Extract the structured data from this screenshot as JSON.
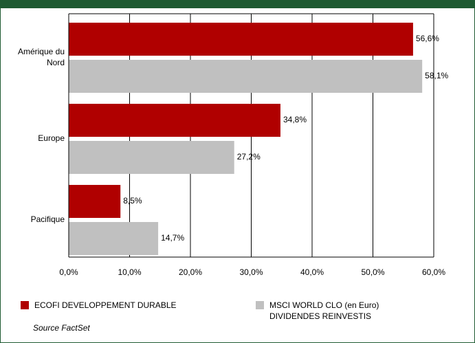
{
  "chart_data": {
    "type": "barh",
    "categories": [
      "Amérique du Nord",
      "Europe",
      "Pacifique"
    ],
    "series": [
      {
        "name": "ECOFI DEVELOPPEMENT DURABLE",
        "color": "#b00000",
        "values": [
          56.6,
          34.8,
          8.5
        ],
        "value_labels": [
          "56,6%",
          "34,8%",
          "8,5%"
        ]
      },
      {
        "name": "MSCI WORLD CLO (en Euro) DIVIDENDES REINVESTIS",
        "color": "#c0c0c0",
        "values": [
          58.1,
          27.2,
          14.7
        ],
        "value_labels": [
          "58,1%",
          "27,2%",
          "14,7%"
        ]
      }
    ],
    "xlim": [
      0,
      60
    ],
    "xticks": [
      {
        "value": 0,
        "label": "0,0%"
      },
      {
        "value": 10,
        "label": "10,0%"
      },
      {
        "value": 20,
        "label": "20,0%"
      },
      {
        "value": 30,
        "label": "30,0%"
      },
      {
        "value": 40,
        "label": "40,0%"
      },
      {
        "value": 50,
        "label": "50,0%"
      },
      {
        "value": 60,
        "label": "60,0%"
      }
    ],
    "grid": true,
    "source": "Source FactSet"
  }
}
